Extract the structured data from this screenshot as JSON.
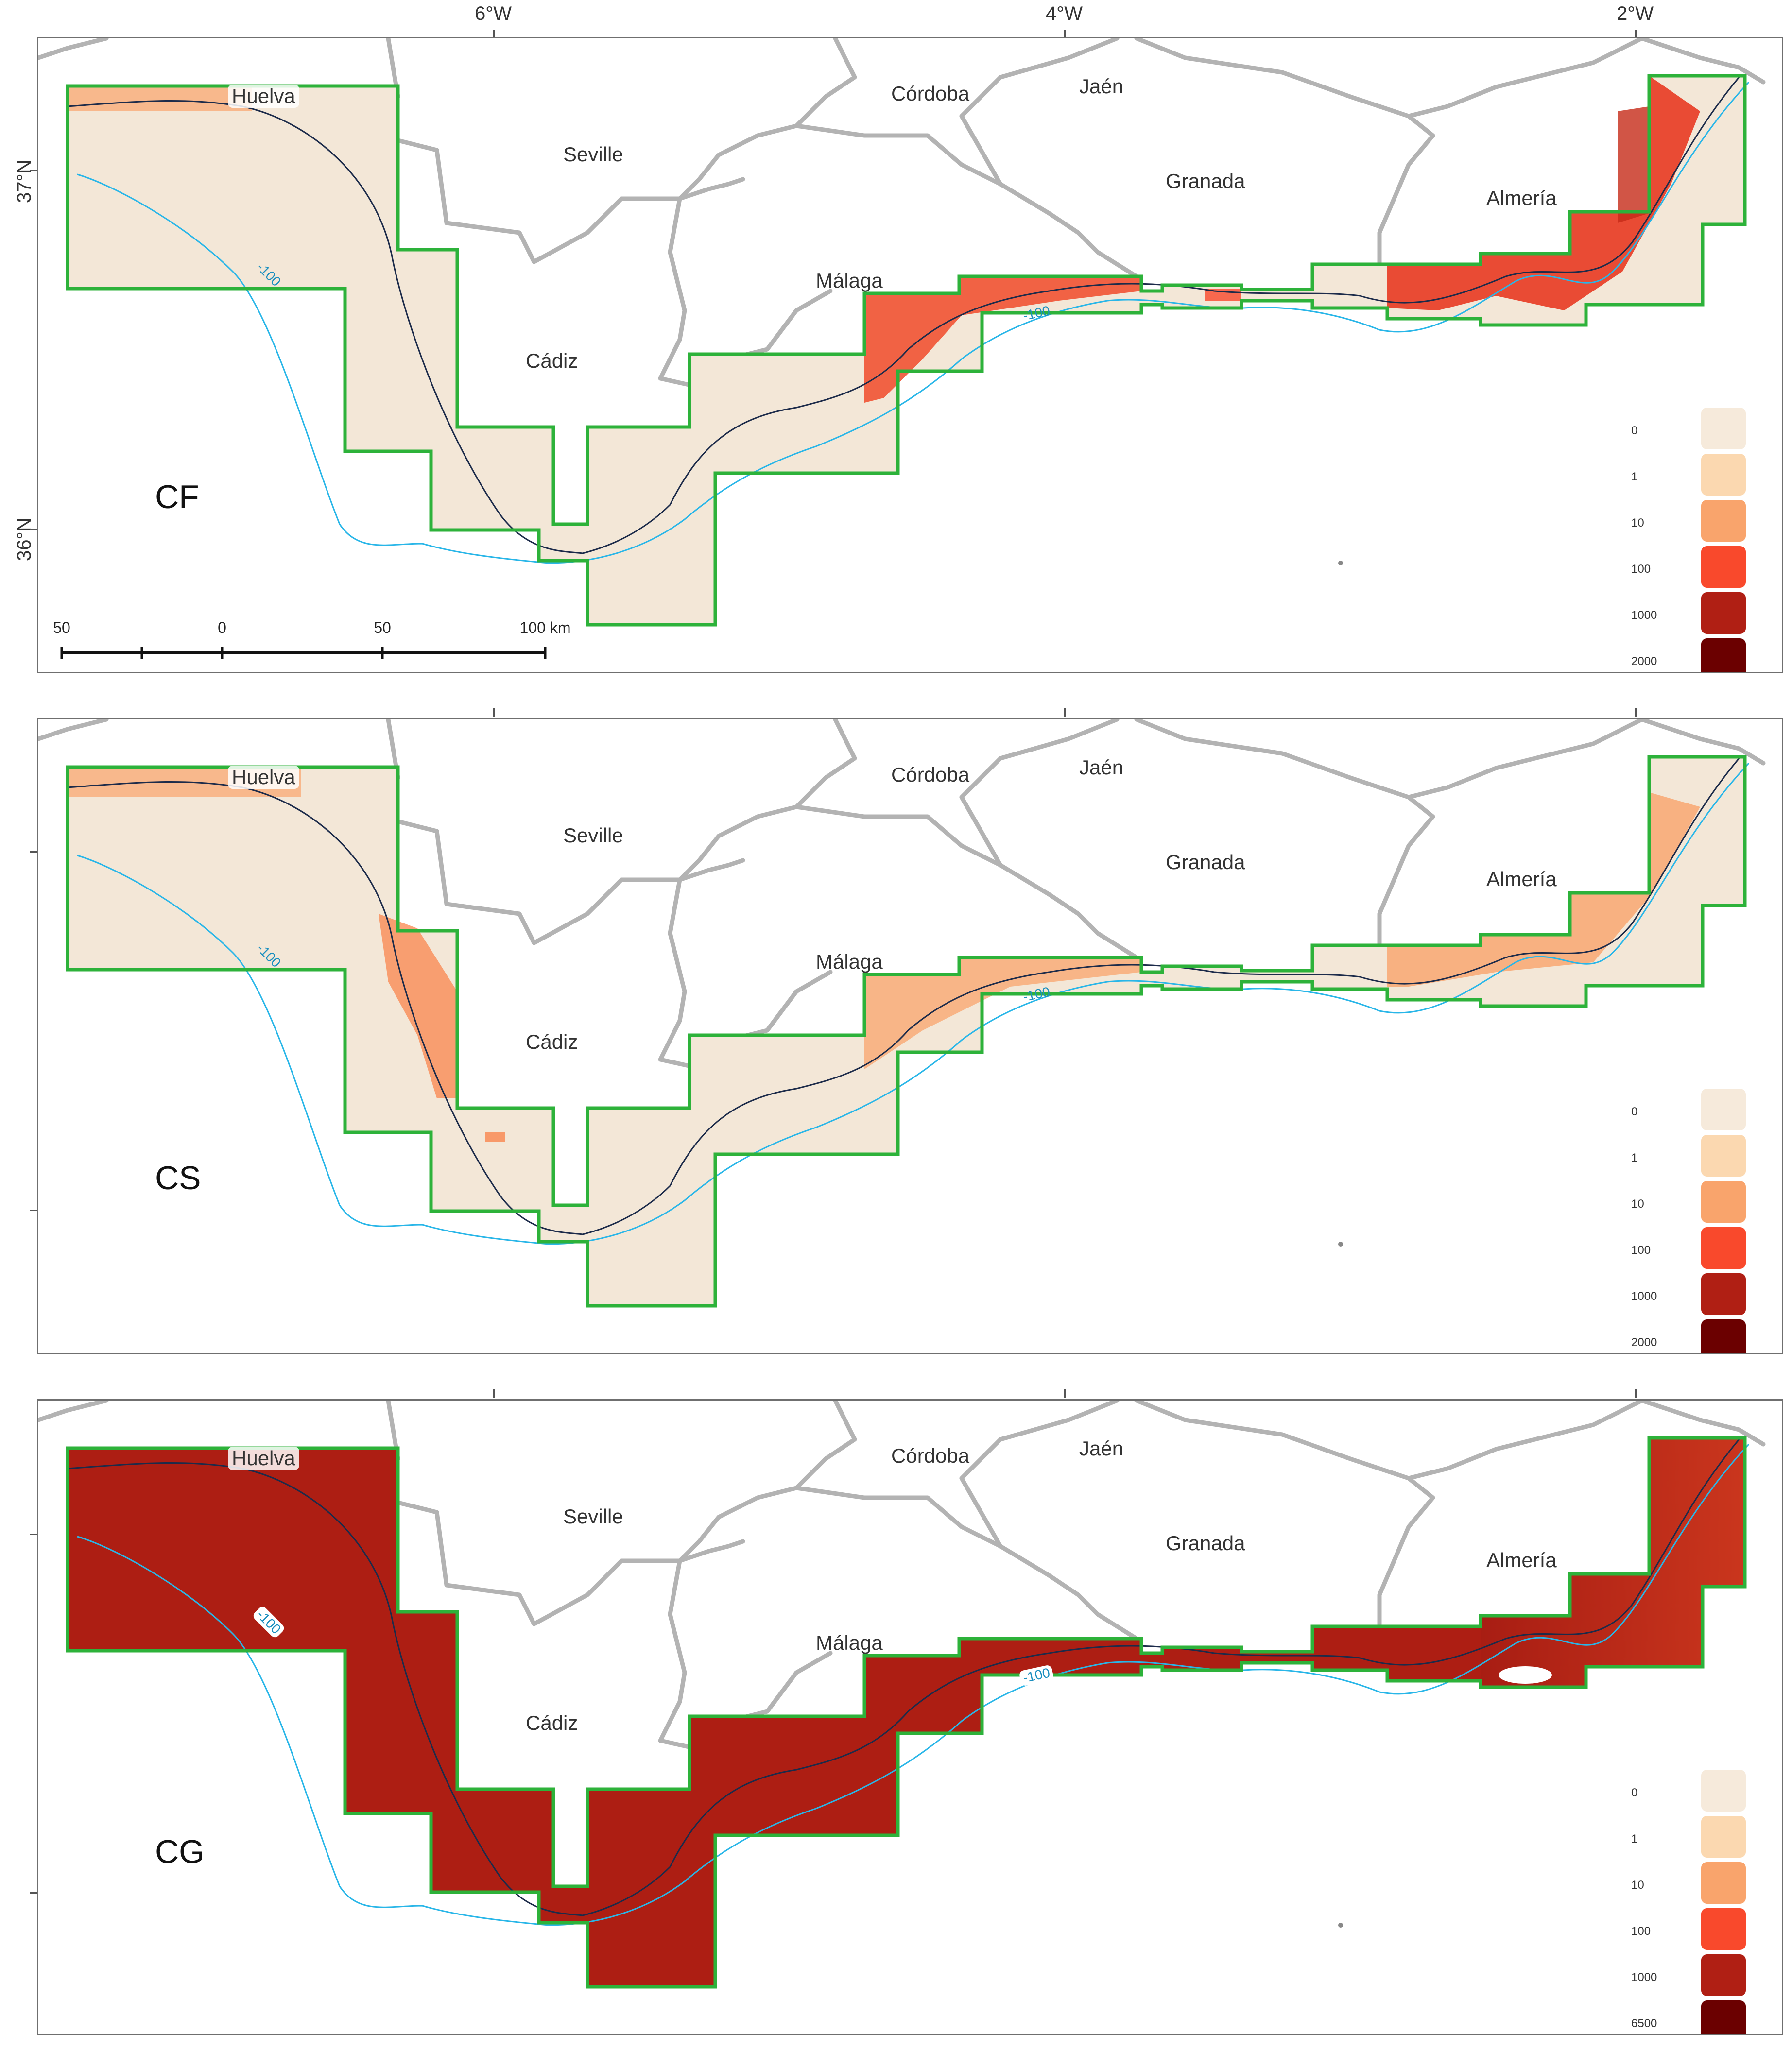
{
  "axes": {
    "top_ticks": [
      "6°W",
      "4°W",
      "2°W"
    ],
    "left_ticks": [
      "37°N",
      "36°N"
    ]
  },
  "cities": {
    "huelva": "Huelva",
    "seville": "Seville",
    "cordoba": "Córdoba",
    "jaen": "Jaén",
    "granada": "Granada",
    "almeria": "Almería",
    "malaga": "Málaga",
    "cadiz": "Cádiz"
  },
  "isobath_label": "-100",
  "scale_bar": {
    "labels": [
      "50",
      "0",
      "50",
      "100 km"
    ]
  },
  "panels": [
    {
      "label": "CF",
      "legend": [
        "0",
        "1",
        "10",
        "100",
        "1000",
        "2000"
      ]
    },
    {
      "label": "CS",
      "legend": [
        "0",
        "1",
        "10",
        "100",
        "1000",
        "2000"
      ]
    },
    {
      "label": "CG",
      "legend": [
        "0",
        "1",
        "10",
        "100",
        "1000",
        "6500"
      ]
    }
  ],
  "legend_colors": [
    "#f6eadb",
    "#fbd8b0",
    "#f9a46c",
    "#f9492c",
    "#b01f14",
    "#6b0000"
  ],
  "colors": {
    "boundary": "#2db23a",
    "coast": "#1c2b4a",
    "isobath": "#29b6e8",
    "province": "#b3b3b3",
    "base_fill": "#f3e7d7",
    "cg_fill": "#ad1e13"
  }
}
